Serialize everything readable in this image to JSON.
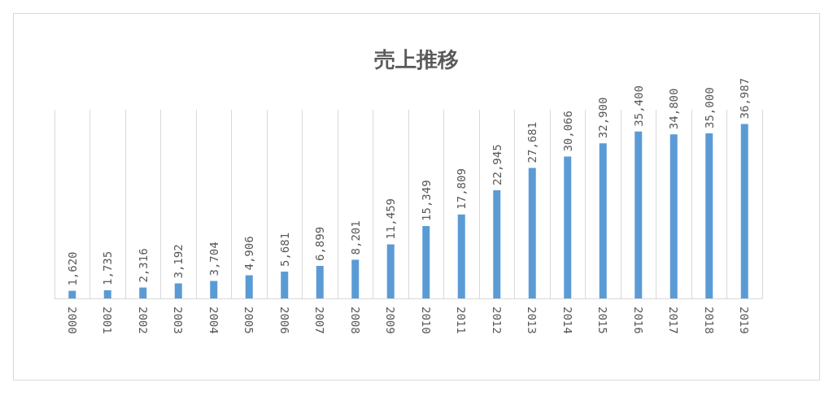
{
  "chart_data": {
    "type": "bar",
    "title": "売上推移",
    "categories": [
      "2000",
      "2001",
      "2002",
      "2003",
      "2004",
      "2005",
      "2006",
      "2007",
      "2008",
      "2009",
      "2010",
      "2011",
      "2012",
      "2013",
      "2014",
      "2015",
      "2016",
      "2017",
      "2018",
      "2019"
    ],
    "values": [
      1620,
      1735,
      2316,
      3192,
      3704,
      4906,
      5681,
      6899,
      8201,
      11459,
      15349,
      17809,
      22945,
      27681,
      30066,
      32900,
      35400,
      34800,
      35000,
      36987
    ],
    "value_labels": [
      "1,620",
      "1,735",
      "2,316",
      "3,192",
      "3,704",
      "4,906",
      "5,681",
      "6,899",
      "8,201",
      "11,459",
      "15,349",
      "17,809",
      "22,945",
      "27,681",
      "30,066",
      "32,900",
      "35,400",
      "34,800",
      "35,000",
      "36,987"
    ],
    "color": "#5b9bd5",
    "grid": "x"
  }
}
